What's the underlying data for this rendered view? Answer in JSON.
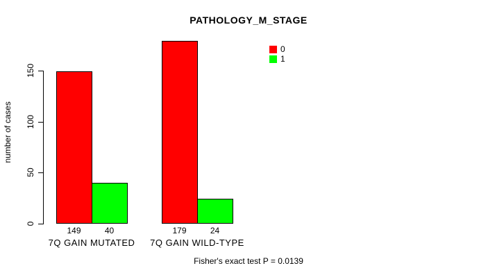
{
  "chart_data": {
    "type": "bar",
    "title": "PATHOLOGY_M_STAGE",
    "categories": [
      "7Q GAIN MUTATED",
      "7Q GAIN WILD-TYPE"
    ],
    "series": [
      {
        "name": "0",
        "color": "#ff0000",
        "values": [
          149,
          179
        ]
      },
      {
        "name": "1",
        "color": "#00ff00",
        "values": [
          40,
          24
        ]
      }
    ],
    "xlabel": "",
    "ylabel": "number of cases",
    "yticks": [
      0,
      50,
      100,
      150
    ],
    "ylim": [
      0,
      185
    ],
    "grid": false,
    "legend_position": "top-right",
    "bar_value_labels": true,
    "annotation": "Fisher's exact test P = 0.0139"
  },
  "colors": {
    "background": "#ffffff",
    "axis": "#000000",
    "text": "#000000",
    "series0": "#ff0000",
    "series1": "#00ff00"
  }
}
